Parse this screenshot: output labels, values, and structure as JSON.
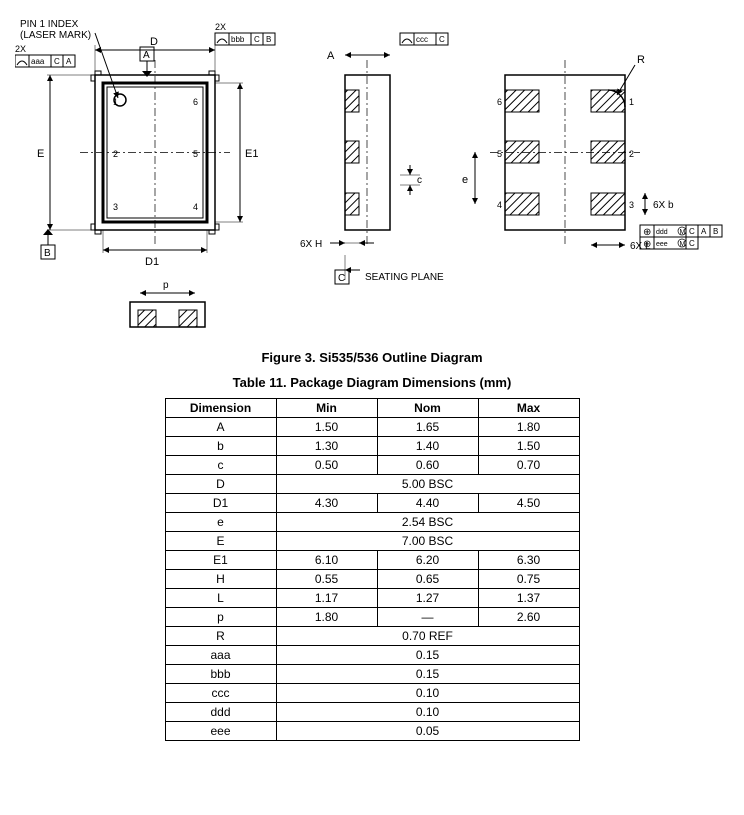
{
  "figure": {
    "caption": "Figure 3. Si535/536 Outline Diagram",
    "labels": {
      "pin1": "PIN 1 INDEX",
      "laser": "(LASER MARK)",
      "seating": "SEATING PLANE",
      "datum_A": "A",
      "datum_B": "B",
      "datum_C": "C",
      "tol_aaa": "aaa",
      "tol_bbb": "bbb",
      "tol_ccc": "ccc",
      "tol_ddd": "ddd",
      "tol_eee": "eee",
      "two_x": "2X",
      "six_h": "6X H",
      "six_l": "6X L",
      "six_b": "6X b",
      "dim_A": "A",
      "dim_c": "c",
      "dim_D": "D",
      "dim_D1": "D1",
      "dim_E": "E",
      "dim_E1": "E1",
      "dim_e": "e",
      "dim_p": "p",
      "dim_R": "R"
    },
    "pins": {
      "p1": "1",
      "p2": "2",
      "p3": "3",
      "p4": "4",
      "p5": "5",
      "p6": "6"
    },
    "colors": {
      "line": "#000000",
      "hatch": "#000000",
      "bg": "#ffffff"
    }
  },
  "table": {
    "caption": "Table 11. Package Diagram Dimensions (mm)",
    "headers": {
      "dim": "Dimension",
      "min": "Min",
      "nom": "Nom",
      "max": "Max"
    },
    "rows": [
      {
        "d": "A",
        "min": "1.50",
        "nom": "1.65",
        "max": "1.80",
        "span": false
      },
      {
        "d": "b",
        "min": "1.30",
        "nom": "1.40",
        "max": "1.50",
        "span": false
      },
      {
        "d": "c",
        "min": "0.50",
        "nom": "0.60",
        "max": "0.70",
        "span": false
      },
      {
        "d": "D",
        "v": "5.00 BSC",
        "span": true
      },
      {
        "d": "D1",
        "min": "4.30",
        "nom": "4.40",
        "max": "4.50",
        "span": false
      },
      {
        "d": "e",
        "v": "2.54 BSC",
        "span": true
      },
      {
        "d": "E",
        "v": "7.00 BSC",
        "span": true
      },
      {
        "d": "E1",
        "min": "6.10",
        "nom": "6.20",
        "max": "6.30",
        "span": false
      },
      {
        "d": "H",
        "min": "0.55",
        "nom": "0.65",
        "max": "0.75",
        "span": false
      },
      {
        "d": "L",
        "min": "1.17",
        "nom": "1.27",
        "max": "1.37",
        "span": false
      },
      {
        "d": "p",
        "min": "1.80",
        "nom": "—",
        "max": "2.60",
        "span": false
      },
      {
        "d": "R",
        "v": "0.70 REF",
        "span": true
      },
      {
        "d": "aaa",
        "v": "0.15",
        "span": true
      },
      {
        "d": "bbb",
        "v": "0.15",
        "span": true
      },
      {
        "d": "ccc",
        "v": "0.10",
        "span": true
      },
      {
        "d": "ddd",
        "v": "0.10",
        "span": true
      },
      {
        "d": "eee",
        "v": "0.05",
        "span": true
      }
    ]
  }
}
